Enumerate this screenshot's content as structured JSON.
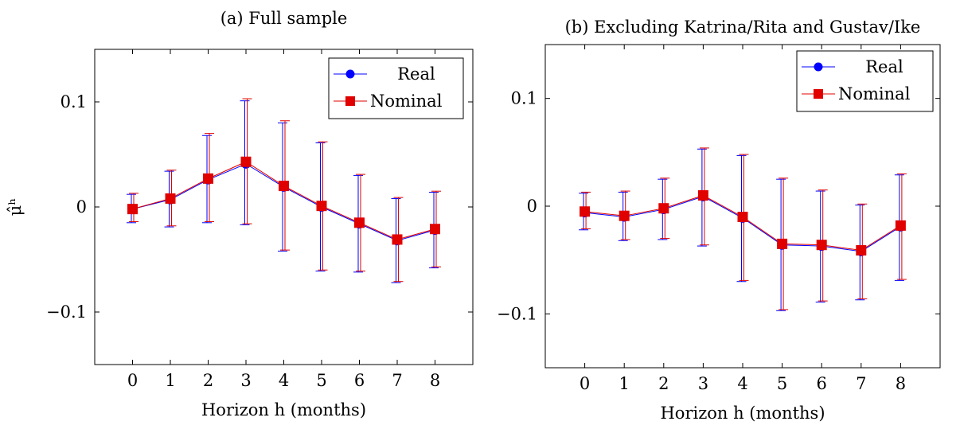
{
  "chart_data": [
    {
      "type": "line",
      "title": "(a) Full sample",
      "xlabel": "Horizon h (months)",
      "ylabel": "μ̂ʰ",
      "x": [
        0,
        1,
        2,
        3,
        4,
        5,
        6,
        7,
        8
      ],
      "xticks": [
        "0",
        "1",
        "2",
        "3",
        "4",
        "5",
        "6",
        "7",
        "8"
      ],
      "yticks": [
        {
          "value": -0.1,
          "label": "−0.1"
        },
        {
          "value": 0,
          "label": "0"
        },
        {
          "value": 0.1,
          "label": "0.1"
        }
      ],
      "xlim": [
        -1,
        9
      ],
      "ylim": [
        -0.15,
        0.15
      ],
      "legend_position": "top-right",
      "series": [
        {
          "name": "Real",
          "color": "#0000ff",
          "marker": "circle",
          "values": [
            -0.002,
            0.007,
            0.026,
            0.041,
            0.019,
            0.0,
            -0.016,
            -0.032,
            -0.022
          ],
          "lower": [
            -0.015,
            -0.019,
            -0.015,
            -0.017,
            -0.042,
            -0.061,
            -0.062,
            -0.072,
            -0.058
          ],
          "upper": [
            0.012,
            0.034,
            0.068,
            0.101,
            0.08,
            0.061,
            0.03,
            0.008,
            0.014
          ]
        },
        {
          "name": "Nominal",
          "color": "#e00000",
          "marker": "square",
          "values": [
            -0.002,
            0.008,
            0.027,
            0.043,
            0.02,
            0.001,
            -0.015,
            -0.031,
            -0.021
          ],
          "lower": [
            -0.014,
            -0.018,
            -0.014,
            -0.016,
            -0.041,
            -0.06,
            -0.061,
            -0.071,
            -0.057
          ],
          "upper": [
            0.013,
            0.035,
            0.07,
            0.103,
            0.082,
            0.062,
            0.031,
            0.009,
            0.015
          ]
        }
      ]
    },
    {
      "type": "line",
      "title": "(b) Excluding Katrina/Rita and Gustav/Ike",
      "xlabel": "Horizon h (months)",
      "ylabel": "",
      "x": [
        0,
        1,
        2,
        3,
        4,
        5,
        6,
        7,
        8
      ],
      "xticks": [
        "0",
        "1",
        "2",
        "3",
        "4",
        "5",
        "6",
        "7",
        "8"
      ],
      "yticks": [
        {
          "value": -0.1,
          "label": "−0.1"
        },
        {
          "value": 0,
          "label": "0"
        },
        {
          "value": 0.1,
          "label": "0.1"
        }
      ],
      "xlim": [
        -1,
        9
      ],
      "ylim": [
        -0.15,
        0.15
      ],
      "legend_position": "top-right",
      "series": [
        {
          "name": "Real",
          "color": "#0000ff",
          "marker": "circle",
          "values": [
            -0.006,
            -0.01,
            -0.003,
            0.009,
            -0.011,
            -0.036,
            -0.037,
            -0.042,
            -0.019
          ],
          "lower": [
            -0.022,
            -0.032,
            -0.031,
            -0.037,
            -0.07,
            -0.097,
            -0.089,
            -0.087,
            -0.069
          ],
          "upper": [
            0.012,
            0.013,
            0.025,
            0.053,
            0.047,
            0.025,
            0.014,
            0.001,
            0.029
          ]
        },
        {
          "name": "Nominal",
          "color": "#e00000",
          "marker": "square",
          "values": [
            -0.005,
            -0.009,
            -0.002,
            0.01,
            -0.01,
            -0.035,
            -0.036,
            -0.041,
            -0.018
          ],
          "lower": [
            -0.021,
            -0.031,
            -0.03,
            -0.036,
            -0.069,
            -0.096,
            -0.088,
            -0.086,
            -0.068
          ],
          "upper": [
            0.013,
            0.014,
            0.026,
            0.054,
            0.048,
            0.026,
            0.015,
            0.002,
            0.03
          ]
        }
      ]
    }
  ]
}
